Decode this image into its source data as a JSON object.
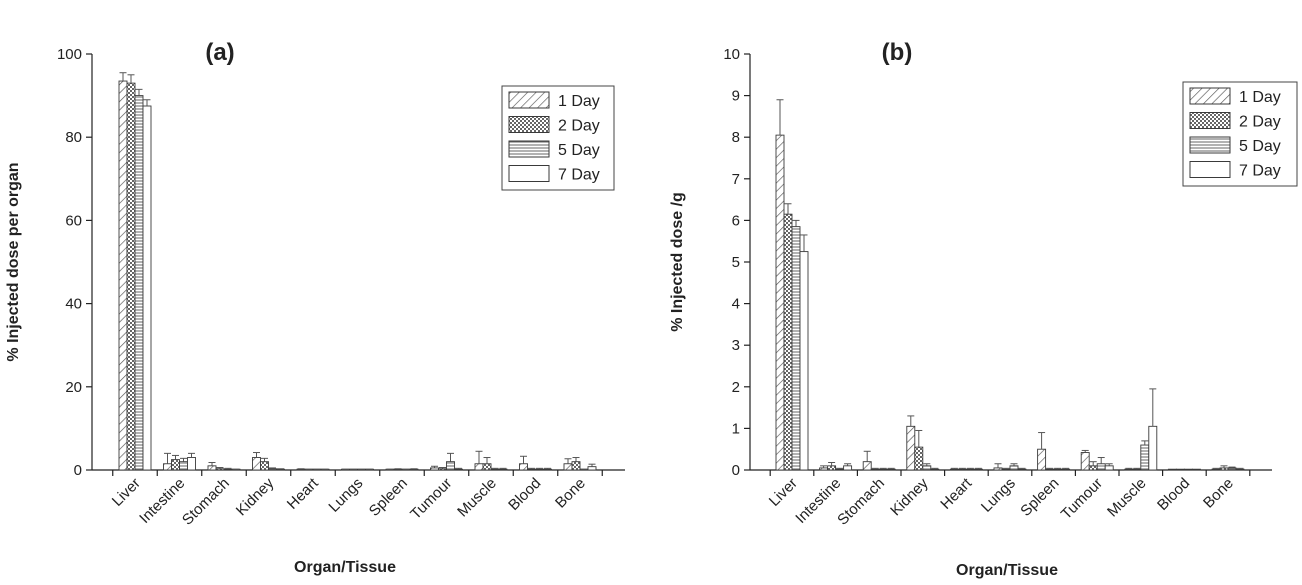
{
  "chart_data": [
    {
      "type": "bar",
      "panel_label": "(a)",
      "title": "",
      "xlabel": "Organ/Tissue",
      "ylabel": "% Injected dose per organ",
      "ylim": [
        0,
        100
      ],
      "yticks": [
        0,
        20,
        40,
        60,
        80,
        100
      ],
      "grid": false,
      "legend_position": "top-right",
      "categories": [
        "Liver",
        "Intestine",
        "Stomach",
        "Kidney",
        "Heart",
        "Lungs",
        "Spleen",
        "Tumour",
        "Muscle",
        "Blood",
        "Bone"
      ],
      "series": [
        {
          "name": "1 Day",
          "values": [
            93.5,
            1.5,
            1.0,
            3.0,
            0.2,
            0.1,
            0.1,
            0.5,
            1.5,
            1.5,
            1.5
          ],
          "errors": [
            2.0,
            2.5,
            0.8,
            1.2,
            0.1,
            0.1,
            0.1,
            0.4,
            3.0,
            1.8,
            1.2
          ]
        },
        {
          "name": "2 Day",
          "values": [
            93.0,
            2.5,
            0.3,
            2.0,
            0.1,
            0.1,
            0.2,
            0.3,
            1.5,
            0.2,
            2.0
          ],
          "errors": [
            2.0,
            1.0,
            0.3,
            0.8,
            0.1,
            0.1,
            0.1,
            0.3,
            1.5,
            0.2,
            1.0
          ]
        },
        {
          "name": "5 Day",
          "values": [
            90.0,
            2.0,
            0.2,
            0.3,
            0.1,
            0.1,
            0.1,
            2.0,
            0.2,
            0.2,
            0.1
          ],
          "errors": [
            1.5,
            0.8,
            0.2,
            0.2,
            0.1,
            0.1,
            0.1,
            2.0,
            0.2,
            0.2,
            0.1
          ]
        },
        {
          "name": "7 Day",
          "values": [
            87.5,
            3.0,
            0.1,
            0.2,
            0.1,
            0.1,
            0.2,
            0.2,
            0.2,
            0.2,
            0.8
          ],
          "errors": [
            1.5,
            1.0,
            0.1,
            0.1,
            0.1,
            0.1,
            0.1,
            0.2,
            0.2,
            0.2,
            0.6
          ]
        }
      ]
    },
    {
      "type": "bar",
      "panel_label": "(b)",
      "title": "",
      "xlabel": "Organ/Tissue",
      "ylabel": "% Injected dose /g",
      "ylim": [
        0,
        10
      ],
      "yticks": [
        0,
        1,
        2,
        3,
        4,
        5,
        6,
        7,
        8,
        9,
        10
      ],
      "grid": false,
      "legend_position": "top-right",
      "categories": [
        "Liver",
        "Intestine",
        "Stomach",
        "Kidney",
        "Heart",
        "Lungs",
        "Spleen",
        "Tumour",
        "Muscle",
        "Blood",
        "Bone"
      ],
      "series": [
        {
          "name": "1 Day",
          "values": [
            8.05,
            0.05,
            0.2,
            1.05,
            0.02,
            0.05,
            0.5,
            0.42,
            0.02,
            0.0,
            0.02
          ],
          "errors": [
            0.85,
            0.05,
            0.25,
            0.25,
            0.02,
            0.1,
            0.4,
            0.05,
            0.02,
            0.0,
            0.02
          ]
        },
        {
          "name": "2 Day",
          "values": [
            6.15,
            0.1,
            0.02,
            0.55,
            0.02,
            0.02,
            0.02,
            0.1,
            0.02,
            0.0,
            0.05
          ],
          "errors": [
            0.25,
            0.08,
            0.02,
            0.4,
            0.02,
            0.02,
            0.02,
            0.1,
            0.02,
            0.0,
            0.05
          ]
        },
        {
          "name": "5 Day",
          "values": [
            5.85,
            0.02,
            0.02,
            0.1,
            0.02,
            0.1,
            0.02,
            0.15,
            0.6,
            0.0,
            0.05
          ],
          "errors": [
            0.15,
            0.02,
            0.02,
            0.05,
            0.02,
            0.05,
            0.02,
            0.15,
            0.1,
            0.0,
            0.02
          ]
        },
        {
          "name": "7 Day",
          "values": [
            5.25,
            0.1,
            0.02,
            0.02,
            0.02,
            0.02,
            0.02,
            0.1,
            1.05,
            0.0,
            0.02
          ],
          "errors": [
            0.4,
            0.05,
            0.02,
            0.02,
            0.02,
            0.02,
            0.02,
            0.05,
            0.9,
            0.0,
            0.02
          ]
        }
      ]
    }
  ],
  "colors": {
    "axis": "#222222",
    "bar_stroke": "#3a3a3a",
    "fill": "#ffffff"
  }
}
